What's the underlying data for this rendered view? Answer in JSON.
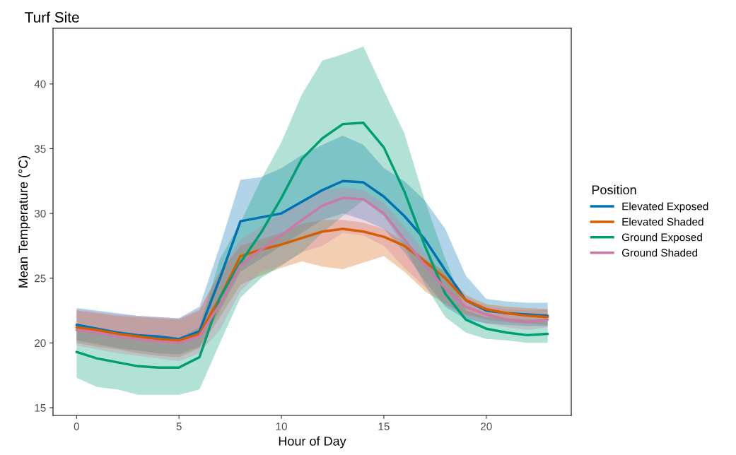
{
  "chart_data": {
    "type": "line",
    "title": "Turf Site",
    "xlabel": "Hour of Day",
    "ylabel": "Mean Temperature (°C)",
    "legend_title": "Position",
    "legend": "right",
    "grid": false,
    "x": [
      0,
      1,
      2,
      3,
      4,
      5,
      6,
      7,
      8,
      9,
      10,
      11,
      12,
      13,
      14,
      15,
      16,
      17,
      18,
      19,
      20,
      21,
      22,
      23
    ],
    "xlim": [
      -1.15,
      24.15
    ],
    "xticks": [
      0,
      5,
      10,
      15,
      20
    ],
    "ylim": [
      14.4,
      44.3
    ],
    "yticks": [
      15,
      20,
      25,
      30,
      35,
      40
    ],
    "series": [
      {
        "name": "Elevated Exposed",
        "color": "#0072b2",
        "values": [
          21.4,
          21.1,
          20.8,
          20.6,
          20.5,
          20.3,
          20.9,
          25.0,
          29.4,
          29.7,
          30.0,
          30.9,
          31.8,
          32.5,
          32.4,
          31.3,
          29.8,
          28.0,
          25.6,
          23.3,
          22.5,
          22.3,
          22.2,
          22.1
        ],
        "upper": [
          22.7,
          22.5,
          22.3,
          22.1,
          22.0,
          21.9,
          22.8,
          27.5,
          32.6,
          32.8,
          33.5,
          34.5,
          35.3,
          36.0,
          35.3,
          33.5,
          32.5,
          31.0,
          28.8,
          25.2,
          23.4,
          23.2,
          23.1,
          23.1
        ],
        "lower": [
          20.2,
          19.9,
          19.6,
          19.4,
          19.2,
          19.1,
          19.7,
          22.5,
          25.5,
          26.5,
          27.5,
          28.5,
          29.5,
          30.0,
          29.5,
          28.8,
          27.0,
          24.8,
          22.8,
          21.8,
          21.5,
          21.4,
          21.3,
          21.3
        ]
      },
      {
        "name": "Elevated Shaded",
        "color": "#d55e00",
        "values": [
          21.2,
          21.0,
          20.7,
          20.5,
          20.3,
          20.2,
          20.7,
          23.5,
          26.7,
          27.2,
          27.6,
          28.1,
          28.6,
          28.8,
          28.6,
          28.2,
          27.5,
          26.3,
          25.0,
          23.3,
          22.6,
          22.3,
          22.1,
          22.0
        ],
        "upper": [
          22.5,
          22.3,
          22.1,
          22.0,
          21.9,
          21.8,
          22.5,
          25.5,
          27.5,
          28.0,
          28.5,
          29.2,
          29.5,
          29.5,
          29.3,
          28.8,
          27.8,
          26.5,
          25.5,
          23.7,
          23.0,
          22.8,
          22.7,
          22.6
        ],
        "lower": [
          20.0,
          19.7,
          19.5,
          19.2,
          19.0,
          18.9,
          19.6,
          22.0,
          24.5,
          25.2,
          25.8,
          26.3,
          25.9,
          25.7,
          26.2,
          26.7,
          25.5,
          24.0,
          23.0,
          22.2,
          21.8,
          21.6,
          21.5,
          21.4
        ]
      },
      {
        "name": "Ground Exposed",
        "color": "#009e73",
        "values": [
          19.3,
          18.8,
          18.5,
          18.2,
          18.1,
          18.1,
          18.9,
          23.5,
          26.2,
          28.5,
          31.2,
          34.2,
          35.8,
          36.9,
          37.0,
          35.1,
          31.7,
          27.5,
          23.8,
          21.8,
          21.1,
          20.8,
          20.6,
          20.7
        ],
        "upper": [
          21.3,
          21.0,
          20.8,
          20.6,
          20.5,
          20.4,
          21.2,
          26.5,
          29.3,
          32.6,
          35.5,
          39.2,
          41.8,
          42.3,
          42.9,
          39.5,
          36.2,
          31.0,
          26.5,
          22.5,
          22.0,
          21.9,
          21.8,
          21.8
        ],
        "lower": [
          17.3,
          16.6,
          16.4,
          16.0,
          16.0,
          16.0,
          16.4,
          20.0,
          23.5,
          25.0,
          26.0,
          27.0,
          28.5,
          29.8,
          31.0,
          29.8,
          27.5,
          24.5,
          22.0,
          20.8,
          20.3,
          20.2,
          20.0,
          20.0
        ]
      },
      {
        "name": "Ground Shaded",
        "color": "#cc79a7",
        "values": [
          21.0,
          20.8,
          20.5,
          20.3,
          20.1,
          20.0,
          20.5,
          23.0,
          26.0,
          27.2,
          28.3,
          29.5,
          30.6,
          31.2,
          31.1,
          30.0,
          28.0,
          26.0,
          24.2,
          22.8,
          22.2,
          21.8,
          21.6,
          21.8
        ],
        "upper": [
          22.6,
          22.4,
          22.2,
          22.1,
          22.0,
          21.9,
          22.6,
          25.5,
          28.0,
          29.0,
          30.0,
          31.0,
          31.8,
          32.0,
          31.8,
          30.8,
          29.0,
          27.0,
          25.2,
          23.5,
          22.8,
          22.6,
          22.5,
          22.6
        ],
        "lower": [
          19.8,
          19.5,
          19.2,
          19.0,
          18.8,
          18.6,
          19.2,
          21.0,
          24.0,
          25.5,
          26.0,
          27.0,
          27.5,
          28.5,
          28.3,
          27.5,
          25.8,
          24.3,
          23.0,
          22.0,
          21.5,
          21.2,
          21.0,
          21.2
        ]
      }
    ]
  }
}
